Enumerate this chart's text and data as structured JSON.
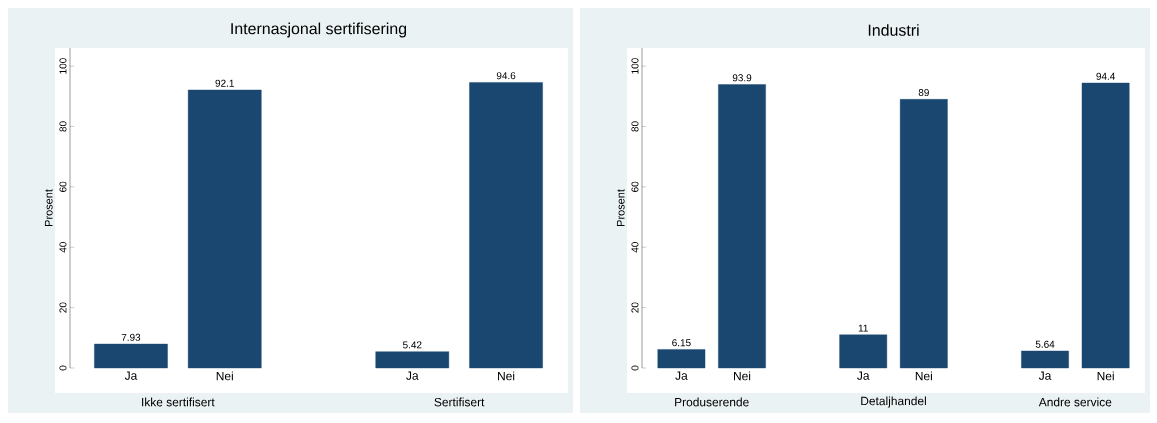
{
  "chart_data": [
    {
      "type": "bar",
      "title": "Internasjonal sertifisering",
      "ylabel": "Prosent",
      "categories": [
        "Ja",
        "Nei",
        null,
        "Ja",
        "Nei"
      ],
      "values": [
        7.93,
        92.1,
        null,
        5.42,
        94.6
      ],
      "color": "#1a476f",
      "ylim": [
        0,
        106
      ],
      "yticks": [
        0,
        20,
        40,
        60,
        80,
        100
      ],
      "data_labels": true,
      "annotations": [
        "Ikke sertifisert",
        "Sertifisert"
      ]
    },
    {
      "type": "bar",
      "title": "Industri",
      "ylabel": "Prosent",
      "categories": [
        "Ja",
        "Nei",
        null,
        "Ja",
        "Nei",
        null,
        "Ja",
        "Nei"
      ],
      "values": [
        6.15,
        93.9,
        null,
        11,
        89,
        null,
        5.64,
        94.4
      ],
      "color": "#1a476f",
      "ylim": [
        0,
        106
      ],
      "yticks": [
        0,
        20,
        40,
        60,
        80,
        100
      ],
      "data_labels": true,
      "annotations": [
        "Produserende",
        "Detaljhandel",
        "Andre service"
      ]
    }
  ]
}
